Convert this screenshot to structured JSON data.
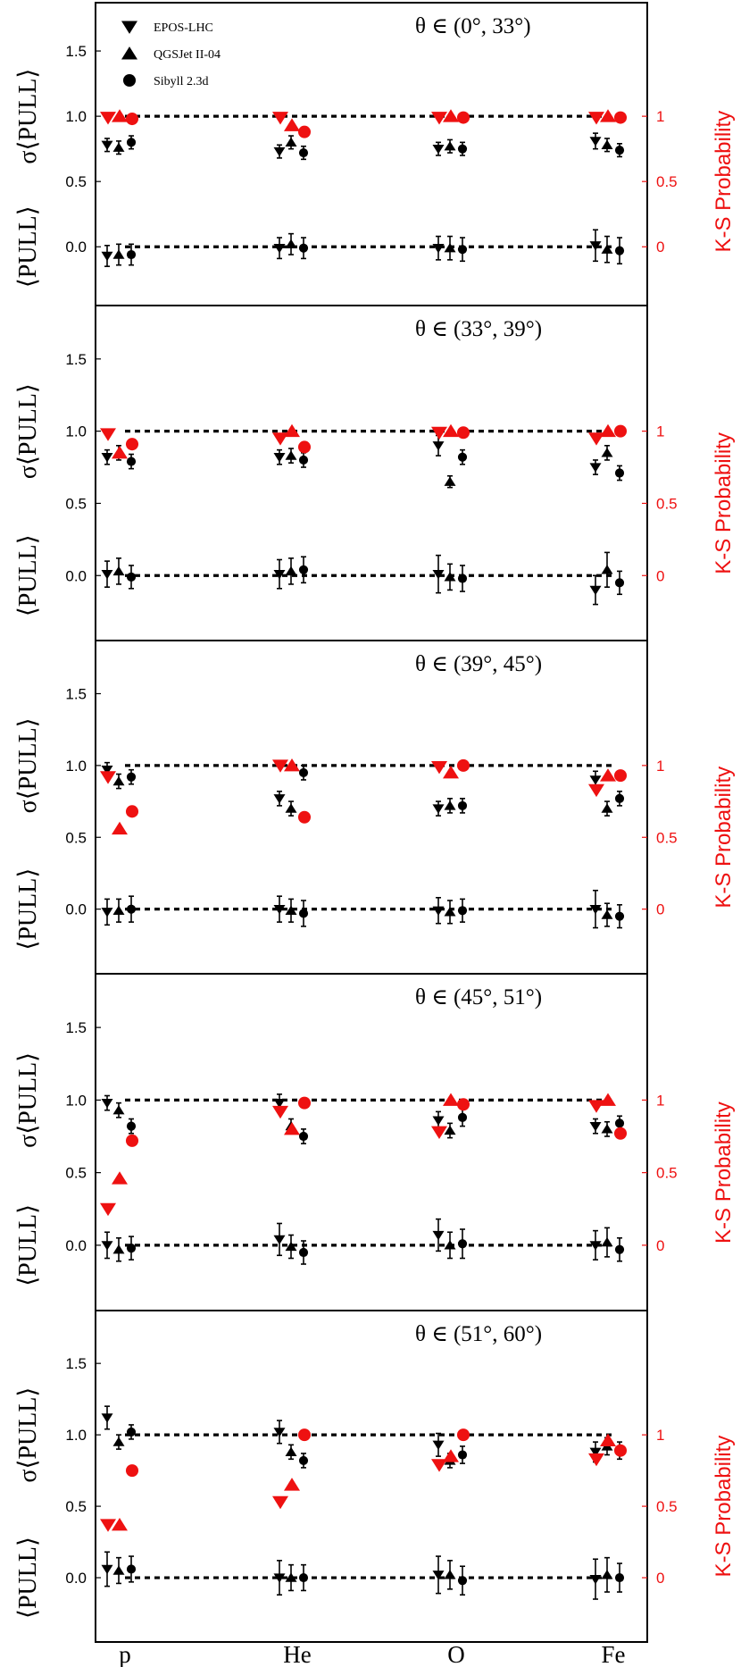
{
  "chart_data": {
    "type": "scatter",
    "categories": [
      "p",
      "He",
      "O",
      "Fe"
    ],
    "left_axis_labels": {
      "sigma": "σ⟨PULL⟩",
      "mean": "⟨PULL⟩"
    },
    "left_ticks": [
      "0.0",
      "0.5",
      "1.0",
      "1.5"
    ],
    "right_axis_label": "K-S Probability",
    "right_ticks": [
      "0",
      "0.5",
      "1"
    ],
    "ylim_left": [
      -0.45,
      1.87
    ],
    "ks_mapping": "K-S probability p is drawn at left-axis position 0.0 + p",
    "reference_lines": [
      0.0,
      1.0
    ],
    "colors": {
      "model": "#000000",
      "ks": "#ee1111"
    },
    "legend": {
      "position": "top-left (first panel)",
      "entries": [
        {
          "name": "EPOS-LHC",
          "marker": "triangle-down"
        },
        {
          "name": "QGSJet II-04",
          "marker": "triangle-up"
        },
        {
          "name": "Sibyll 2.3d",
          "marker": "circle"
        }
      ]
    },
    "panels": [
      {
        "title": "θ ∈ (0°, 33°)",
        "series": [
          {
            "name": "EPOS-LHC",
            "marker": "triangle-down",
            "sigma": [
              0.78,
              0.73,
              0.75,
              0.81
            ],
            "sigma_err": [
              0.05,
              0.05,
              0.05,
              0.06
            ],
            "mean": [
              -0.07,
              -0.01,
              -0.01,
              0.01
            ],
            "mean_err": [
              0.08,
              0.08,
              0.09,
              0.12
            ],
            "ks": [
              0.99,
              0.99,
              0.99,
              0.99
            ]
          },
          {
            "name": "QGSJet II-04",
            "marker": "triangle-up",
            "sigma": [
              0.76,
              0.8,
              0.77,
              0.78
            ],
            "sigma_err": [
              0.05,
              0.05,
              0.05,
              0.05
            ],
            "mean": [
              -0.06,
              0.02,
              -0.01,
              -0.02
            ],
            "mean_err": [
              0.08,
              0.08,
              0.09,
              0.1
            ],
            "ks": [
              1.0,
              0.93,
              1.0,
              1.0
            ]
          },
          {
            "name": "Sibyll 2.3d",
            "marker": "circle",
            "sigma": [
              0.8,
              0.72,
              0.75,
              0.74
            ],
            "sigma_err": [
              0.05,
              0.05,
              0.05,
              0.05
            ],
            "mean": [
              -0.06,
              -0.01,
              -0.02,
              -0.03
            ],
            "mean_err": [
              0.08,
              0.08,
              0.09,
              0.1
            ],
            "ks": [
              0.98,
              0.88,
              0.99,
              0.99
            ]
          }
        ]
      },
      {
        "title": "θ ∈ (33°, 39°)",
        "series": [
          {
            "name": "EPOS-LHC",
            "marker": "triangle-down",
            "sigma": [
              0.82,
              0.82,
              0.9,
              0.75
            ],
            "sigma_err": [
              0.05,
              0.05,
              0.07,
              0.05
            ],
            "mean": [
              0.01,
              0.01,
              0.01,
              -0.1
            ],
            "mean_err": [
              0.09,
              0.1,
              0.13,
              0.1
            ],
            "ks": [
              0.98,
              0.95,
              0.99,
              0.95
            ]
          },
          {
            "name": "QGSJet II-04",
            "marker": "triangle-up",
            "sigma": [
              0.85,
              0.83,
              0.65,
              0.85
            ],
            "sigma_err": [
              0.05,
              0.05,
              0.04,
              0.05
            ],
            "mean": [
              0.03,
              0.03,
              -0.01,
              0.04
            ],
            "mean_err": [
              0.09,
              0.09,
              0.09,
              0.12
            ],
            "ks": [
              0.85,
              1.0,
              1.0,
              1.0
            ]
          },
          {
            "name": "Sibyll 2.3d",
            "marker": "circle",
            "sigma": [
              0.79,
              0.8,
              0.82,
              0.71
            ],
            "sigma_err": [
              0.05,
              0.05,
              0.05,
              0.05
            ],
            "mean": [
              -0.01,
              0.04,
              -0.02,
              -0.05
            ],
            "mean_err": [
              0.08,
              0.09,
              0.09,
              0.08
            ],
            "ks": [
              0.91,
              0.89,
              0.99,
              1.0
            ]
          }
        ]
      },
      {
        "title": "θ ∈ (39°, 45°)",
        "series": [
          {
            "name": "EPOS-LHC",
            "marker": "triangle-down",
            "sigma": [
              0.97,
              0.77,
              0.7,
              0.9
            ],
            "sigma_err": [
              0.05,
              0.05,
              0.05,
              0.06
            ],
            "mean": [
              -0.02,
              0.0,
              -0.01,
              0.0
            ],
            "mean_err": [
              0.09,
              0.09,
              0.09,
              0.13
            ],
            "ks": [
              0.92,
              1.0,
              0.99,
              0.83
            ]
          },
          {
            "name": "QGSJet II-04",
            "marker": "triangle-up",
            "sigma": [
              0.89,
              0.7,
              0.72,
              0.7
            ],
            "sigma_err": [
              0.05,
              0.05,
              0.05,
              0.05
            ],
            "mean": [
              -0.01,
              -0.01,
              -0.02,
              -0.04
            ],
            "mean_err": [
              0.08,
              0.08,
              0.08,
              0.08
            ],
            "ks": [
              0.56,
              1.0,
              0.95,
              0.93
            ]
          },
          {
            "name": "Sibyll 2.3d",
            "marker": "circle",
            "sigma": [
              0.92,
              0.95,
              0.72,
              0.77
            ],
            "sigma_err": [
              0.05,
              0.05,
              0.05,
              0.05
            ],
            "mean": [
              0.0,
              -0.03,
              -0.01,
              -0.05
            ],
            "mean_err": [
              0.09,
              0.09,
              0.08,
              0.08
            ],
            "ks": [
              0.68,
              0.64,
              1.0,
              0.93
            ]
          }
        ]
      },
      {
        "title": "θ ∈ (45°, 51°)",
        "series": [
          {
            "name": "EPOS-LHC",
            "marker": "triangle-down",
            "sigma": [
              0.98,
              0.98,
              0.86,
              0.82
            ],
            "sigma_err": [
              0.05,
              0.06,
              0.06,
              0.05
            ],
            "mean": [
              0.0,
              0.04,
              0.07,
              0.0
            ],
            "mean_err": [
              0.09,
              0.11,
              0.11,
              0.1
            ],
            "ks": [
              0.25,
              0.92,
              0.78,
              0.96
            ]
          },
          {
            "name": "QGSJet II-04",
            "marker": "triangle-up",
            "sigma": [
              0.93,
              0.82,
              0.79,
              0.8
            ],
            "sigma_err": [
              0.05,
              0.05,
              0.05,
              0.05
            ],
            "mean": [
              -0.03,
              -0.01,
              0.0,
              0.02
            ],
            "mean_err": [
              0.08,
              0.08,
              0.09,
              0.1
            ],
            "ks": [
              0.46,
              0.8,
              1.0,
              1.0
            ]
          },
          {
            "name": "Sibyll 2.3d",
            "marker": "circle",
            "sigma": [
              0.82,
              0.75,
              0.88,
              0.84
            ],
            "sigma_err": [
              0.05,
              0.05,
              0.06,
              0.05
            ],
            "mean": [
              -0.02,
              -0.05,
              0.01,
              -0.03
            ],
            "mean_err": [
              0.08,
              0.08,
              0.1,
              0.08
            ],
            "ks": [
              0.72,
              0.98,
              0.97,
              0.77
            ]
          }
        ]
      },
      {
        "title": "θ ∈ (51°, 60°)",
        "series": [
          {
            "name": "EPOS-LHC",
            "marker": "triangle-down",
            "sigma": [
              1.12,
              1.02,
              0.93,
              0.88
            ],
            "sigma_err": [
              0.08,
              0.08,
              0.08,
              0.07
            ],
            "mean": [
              0.06,
              0.0,
              0.02,
              -0.01
            ],
            "mean_err": [
              0.12,
              0.12,
              0.13,
              0.14
            ],
            "ks": [
              0.37,
              0.53,
              0.79,
              0.83
            ]
          },
          {
            "name": "QGSJet II-04",
            "marker": "triangle-up",
            "sigma": [
              0.95,
              0.88,
              0.82,
              0.92
            ],
            "sigma_err": [
              0.05,
              0.05,
              0.05,
              0.06
            ],
            "mean": [
              0.05,
              0.0,
              0.02,
              0.02
            ],
            "mean_err": [
              0.09,
              0.09,
              0.1,
              0.12
            ],
            "ks": [
              0.37,
              0.65,
              0.85,
              0.96
            ]
          },
          {
            "name": "Sibyll 2.3d",
            "marker": "circle",
            "sigma": [
              1.02,
              0.82,
              0.86,
              0.89
            ],
            "sigma_err": [
              0.05,
              0.05,
              0.06,
              0.06
            ],
            "mean": [
              0.06,
              0.0,
              -0.02,
              0.0
            ],
            "mean_err": [
              0.09,
              0.09,
              0.1,
              0.1
            ],
            "ks": [
              0.75,
              1.0,
              1.0,
              0.89
            ]
          }
        ]
      }
    ]
  }
}
